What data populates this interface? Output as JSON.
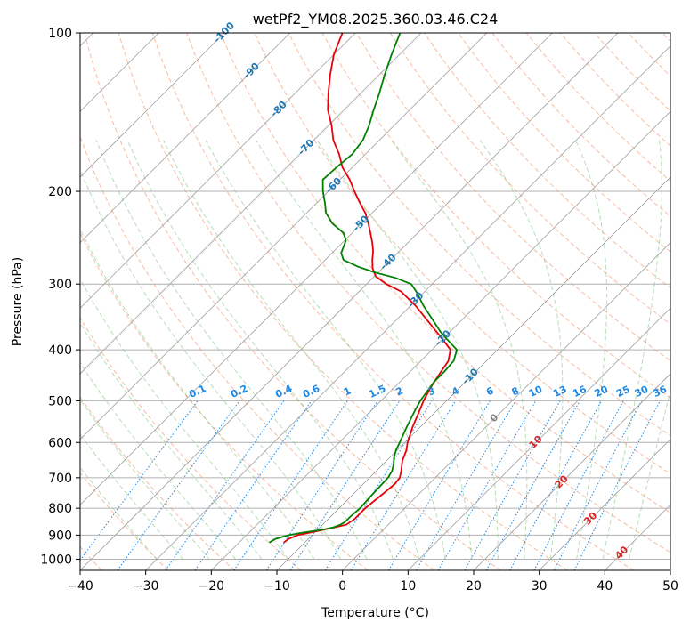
{
  "chart_data": {
    "type": "line",
    "title": "wetPf2_YM08.2025.360.03.46.C24",
    "xlabel": "Temperature (°C)",
    "ylabel": "Pressure (hPa)",
    "x_ticks": [
      -40,
      -30,
      -20,
      -10,
      0,
      10,
      20,
      30,
      40,
      50
    ],
    "y_ticks": [
      100,
      200,
      300,
      400,
      500,
      600,
      700,
      800,
      900,
      1000
    ],
    "xlim": [
      -40,
      50
    ],
    "ylim": [
      1050,
      100
    ],
    "y_scale": "log",
    "grid": true,
    "colors": {
      "temperature": "#e8000b",
      "dewpoint": "#008000",
      "dry_adiabat": "#f4a582",
      "moist_adiabat": "#2ca02c",
      "mixing_ratio": "#1e88e5",
      "isotherm_label": "#1f77b4",
      "positive_isotherm_label": "#d62728",
      "zero_label": "#808080"
    },
    "temperature_profile": {
      "pressure": [
        930,
        915,
        900,
        880,
        860,
        840,
        800,
        760,
        720,
        700,
        680,
        650,
        620,
        600,
        560,
        520,
        500,
        470,
        440,
        420,
        400,
        385,
        370,
        350,
        330,
        310,
        300,
        290,
        280,
        270,
        260,
        250,
        240,
        230,
        220,
        210,
        200,
        190,
        180,
        170,
        160,
        150,
        140,
        130,
        120,
        110,
        100
      ],
      "temperature": [
        -13.2,
        -13.0,
        -12.2,
        -9.2,
        -6.4,
        -6.0,
        -6.0,
        -5.6,
        -5.2,
        -5.4,
        -6.2,
        -7.6,
        -8.6,
        -9.6,
        -11.2,
        -12.7,
        -13.5,
        -14.5,
        -15.3,
        -15.8,
        -17.2,
        -19.5,
        -22.0,
        -25.5,
        -29.2,
        -33.6,
        -37.0,
        -39.8,
        -41.5,
        -42.8,
        -44.0,
        -45.5,
        -47.2,
        -49.0,
        -51.0,
        -53.5,
        -56.0,
        -58.5,
        -61.5,
        -64.0,
        -67.0,
        -69.5,
        -72.5,
        -75.0,
        -77.5,
        -80.0,
        -82.0
      ]
    },
    "dewpoint_profile": {
      "pressure": [
        930,
        915,
        900,
        890,
        880,
        870,
        860,
        850,
        830,
        800,
        760,
        700,
        680,
        660,
        640,
        620,
        600,
        560,
        520,
        500,
        480,
        460,
        440,
        420,
        400,
        385,
        370,
        350,
        330,
        310,
        300,
        292,
        285,
        278,
        270,
        262,
        255,
        248,
        240,
        230,
        220,
        210,
        200,
        190,
        180,
        170,
        160,
        150,
        140,
        130,
        120,
        110,
        100
      ],
      "dewpoint": [
        -15.4,
        -15.0,
        -13.6,
        -11.8,
        -9.5,
        -8.0,
        -7.3,
        -7.0,
        -7.0,
        -6.8,
        -7.0,
        -7.2,
        -7.6,
        -8.4,
        -9.4,
        -10.2,
        -10.8,
        -12.1,
        -13.4,
        -14.0,
        -14.4,
        -14.8,
        -14.8,
        -15.0,
        -16.2,
        -18.8,
        -21.4,
        -24.6,
        -28.0,
        -31.3,
        -33.2,
        -36.5,
        -40.6,
        -44.0,
        -47.2,
        -48.6,
        -49.2,
        -49.8,
        -51.3,
        -54.5,
        -57.0,
        -58.8,
        -60.8,
        -62.6,
        -62.4,
        -62.0,
        -62.5,
        -63.8,
        -65.5,
        -67.2,
        -69.2,
        -71.2,
        -73.2
      ]
    },
    "isotherm_labels": [
      "-100",
      "-90",
      "-80",
      "-70",
      "-60",
      "-50",
      "-40",
      "-30",
      "-20",
      "-10",
      "0",
      "10",
      "20",
      "30",
      "40"
    ],
    "mixing_ratio_labels": [
      "0.1",
      "0.2",
      "0.4",
      "0.6",
      "1",
      "1.5",
      "2",
      "3",
      "4",
      "6",
      "8",
      "10",
      "13",
      "16",
      "20",
      "25",
      "30",
      "36"
    ]
  }
}
